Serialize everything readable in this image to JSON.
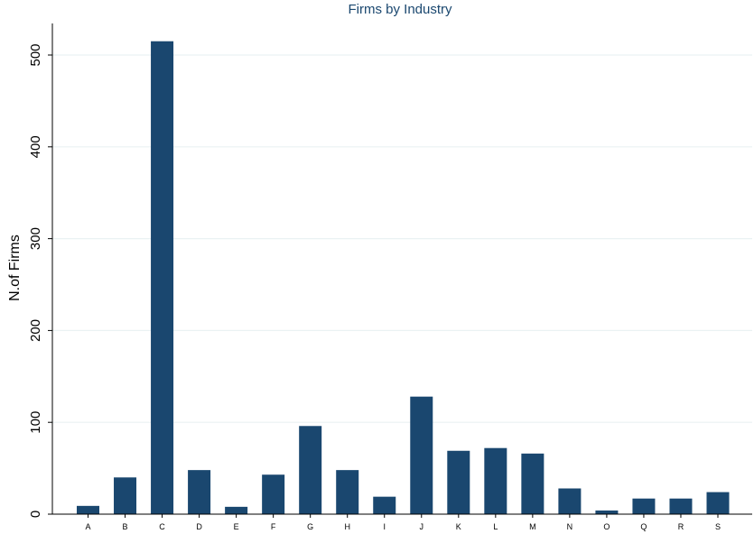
{
  "chart_data": {
    "type": "bar",
    "title": "Firms by Industry",
    "xlabel": "",
    "ylabel": "N.of Firms",
    "categories": [
      "A",
      "B",
      "C",
      "D",
      "E",
      "F",
      "G",
      "H",
      "I",
      "J",
      "K",
      "L",
      "M",
      "N",
      "O",
      "Q",
      "R",
      "S"
    ],
    "values": [
      9,
      40,
      515,
      48,
      8,
      43,
      96,
      48,
      19,
      128,
      69,
      72,
      66,
      28,
      4,
      17,
      17,
      24
    ],
    "ylim": [
      0,
      515
    ],
    "yticks": [
      0,
      100,
      200,
      300,
      400,
      500
    ],
    "ytick_labels": [
      "0",
      "100",
      "200",
      "300",
      "400",
      "500"
    ],
    "grid": true,
    "legend": "none",
    "bar_color": "#1a476f"
  }
}
